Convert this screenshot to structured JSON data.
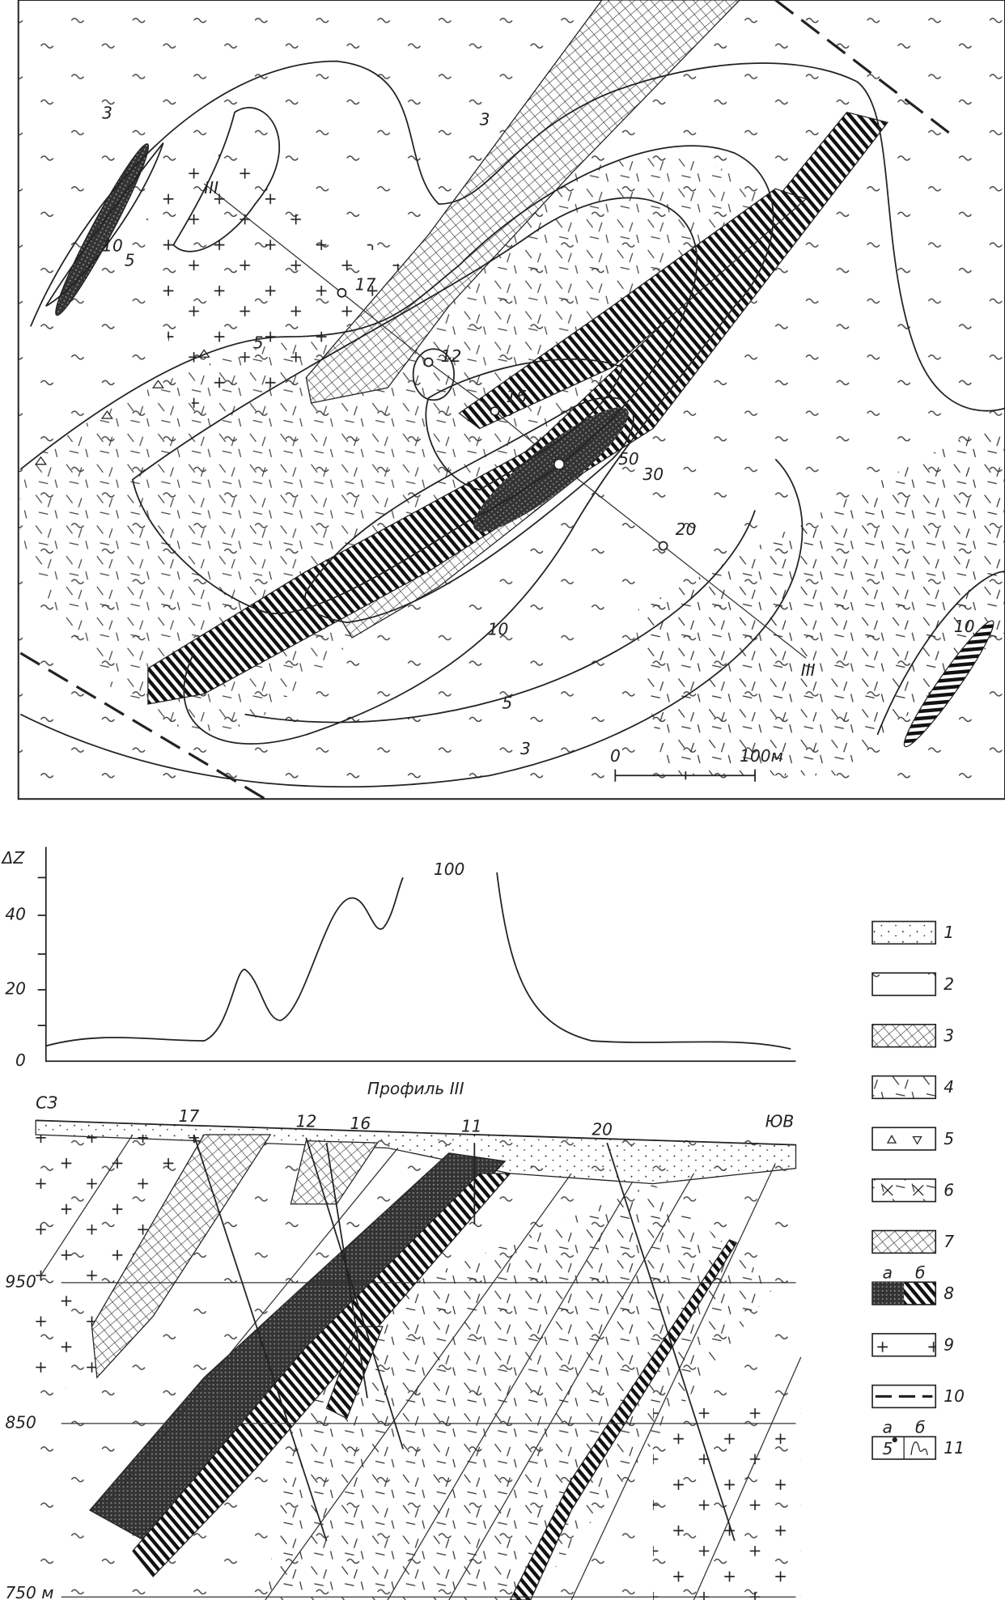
{
  "map": {
    "contour_labels": [
      "3",
      "3",
      "10",
      "5",
      "5",
      "50",
      "30",
      "10",
      "5",
      "3",
      "10"
    ],
    "boreholes": [
      "17",
      "12",
      "16",
      "20"
    ],
    "profile_line_labels": [
      "III",
      "III"
    ],
    "scale": {
      "start": "0",
      "end": "100м"
    }
  },
  "profile": {
    "anomaly_axis": {
      "title": "ΔZ",
      "ticks": [
        "40",
        "20",
        "0"
      ]
    },
    "peak_label": "100",
    "title": "Профиль III",
    "left_direction": "СЗ",
    "right_direction": "ЮВ",
    "boreholes": [
      "17",
      "12",
      "16",
      "11",
      "20"
    ],
    "depth_labels": [
      "950",
      "850",
      "750 м"
    ]
  },
  "legend": [
    {
      "number": "1"
    },
    {
      "number": "2"
    },
    {
      "number": "3"
    },
    {
      "number": "4"
    },
    {
      "number": "5"
    },
    {
      "number": "6"
    },
    {
      "number": "7"
    },
    {
      "number": "8",
      "sub_labels": [
        "а",
        "б"
      ]
    },
    {
      "number": "9"
    },
    {
      "number": "10"
    },
    {
      "number": "11",
      "sub_labels": [
        "а",
        "б"
      ],
      "sample": "5"
    }
  ]
}
